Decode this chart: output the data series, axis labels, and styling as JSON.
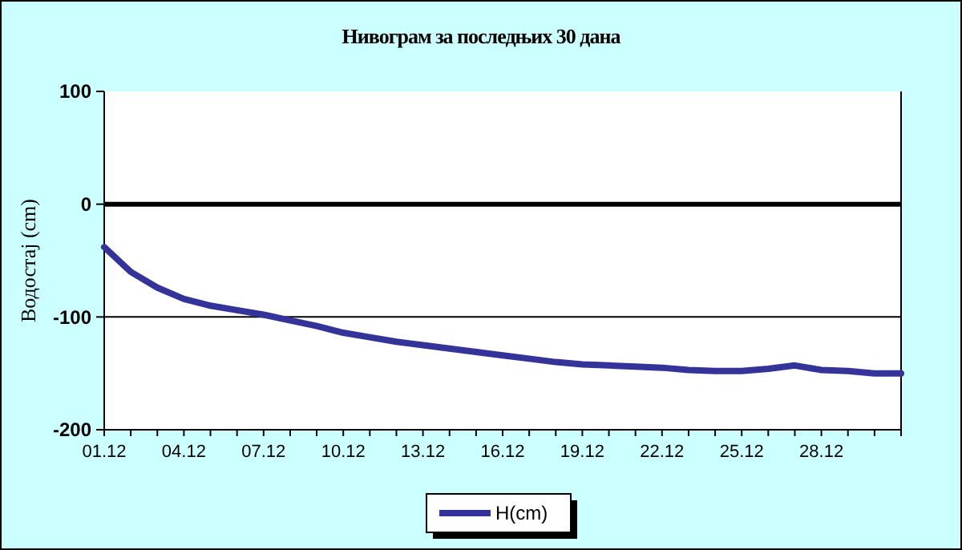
{
  "chart_data": {
    "type": "line",
    "title": "Нивограм за последњих 30 дана",
    "ylabel": "Водостај (cm)",
    "categories": [
      "01.12",
      null,
      null,
      "04.12",
      null,
      null,
      "07.12",
      null,
      null,
      "10.12",
      null,
      null,
      "13.12",
      null,
      null,
      "16.12",
      null,
      null,
      "19.12",
      null,
      null,
      "22.12",
      null,
      null,
      "25.12",
      null,
      null,
      "28.12",
      null,
      null,
      null
    ],
    "series": [
      {
        "name": "H(cm)",
        "color": "#333399",
        "values": [
          -38,
          -60,
          -74,
          -84,
          -90,
          -94,
          -98,
          -103,
          -108,
          -114,
          -118,
          -122,
          -125,
          -128,
          -131,
          -134,
          -137,
          -140,
          -142,
          -143,
          -144,
          -145,
          -147,
          -148,
          -148,
          -146,
          -143,
          -147,
          -148,
          -150,
          -150
        ]
      }
    ],
    "ylim": [
      -200,
      100
    ],
    "yticks": [
      -200,
      -100,
      0,
      100
    ],
    "legend": "bottom",
    "marker": "none",
    "line_style": "solid",
    "ref_lines": [
      {
        "axis": "y",
        "value": 0,
        "color": "#000000",
        "line_style": "solid"
      },
      {
        "axis": "y",
        "value": -100,
        "color": "#000000",
        "line_style": "solid"
      }
    ]
  }
}
